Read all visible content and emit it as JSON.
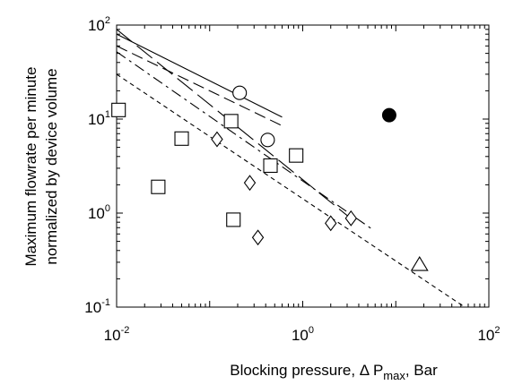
{
  "chart_data": {
    "type": "scatter",
    "xscale": "log",
    "yscale": "log",
    "xlim": [
      0.01,
      100
    ],
    "ylim": [
      0.1,
      100
    ],
    "xlabel": {
      "main": "Blocking pressure, Δ P",
      "sub": "max",
      "tail": ",  Bar"
    },
    "ylabel": [
      "Maximum flowrate per minute",
      "normalized by device volume"
    ],
    "x_ticks": [
      {
        "value": 0.01,
        "base": "10",
        "exp": "-2"
      },
      {
        "value": 1,
        "base": "10",
        "exp": "0"
      },
      {
        "value": 100,
        "base": "10",
        "exp": "2"
      }
    ],
    "y_ticks": [
      {
        "value": 0.1,
        "base": "10",
        "exp": "-1"
      },
      {
        "value": 1,
        "base": "10",
        "exp": "0"
      },
      {
        "value": 10,
        "base": "10",
        "exp": "1"
      },
      {
        "value": 100,
        "base": "10",
        "exp": "2"
      }
    ],
    "series": [
      {
        "marker": "square",
        "points": [
          [
            0.0105,
            12.5
          ],
          [
            0.028,
            1.9
          ],
          [
            0.05,
            6.2
          ],
          [
            0.17,
            9.5
          ],
          [
            0.18,
            0.85
          ],
          [
            0.45,
            3.2
          ],
          [
            0.85,
            4.1
          ]
        ]
      },
      {
        "marker": "circle",
        "points": [
          [
            0.21,
            19
          ],
          [
            0.42,
            6
          ]
        ]
      },
      {
        "marker": "diamond",
        "points": [
          [
            0.12,
            6.1
          ],
          [
            0.27,
            2.1
          ],
          [
            0.33,
            0.55
          ],
          [
            2.0,
            0.78
          ],
          [
            3.3,
            0.88
          ]
        ]
      },
      {
        "marker": "triangle",
        "points": [
          [
            18,
            0.28
          ]
        ]
      },
      {
        "marker": "filled-circle",
        "points": [
          [
            8.5,
            11
          ]
        ]
      }
    ],
    "fit_lines": [
      {
        "style": "solid",
        "from": [
          0.01,
          80
        ],
        "to": [
          0.6,
          10.5
        ]
      },
      {
        "style": "long-dash",
        "from": [
          0.01,
          90
        ],
        "to": [
          4.0,
          0.75
        ]
      },
      {
        "style": "mid-dash",
        "from": [
          0.01,
          60
        ],
        "to": [
          0.6,
          8.5
        ]
      },
      {
        "style": "dash-dot",
        "from": [
          0.01,
          52
        ],
        "to": [
          5.5,
          0.68
        ]
      },
      {
        "style": "short-dash",
        "from": [
          0.01,
          30
        ],
        "to": [
          55,
          0.1
        ]
      }
    ]
  }
}
